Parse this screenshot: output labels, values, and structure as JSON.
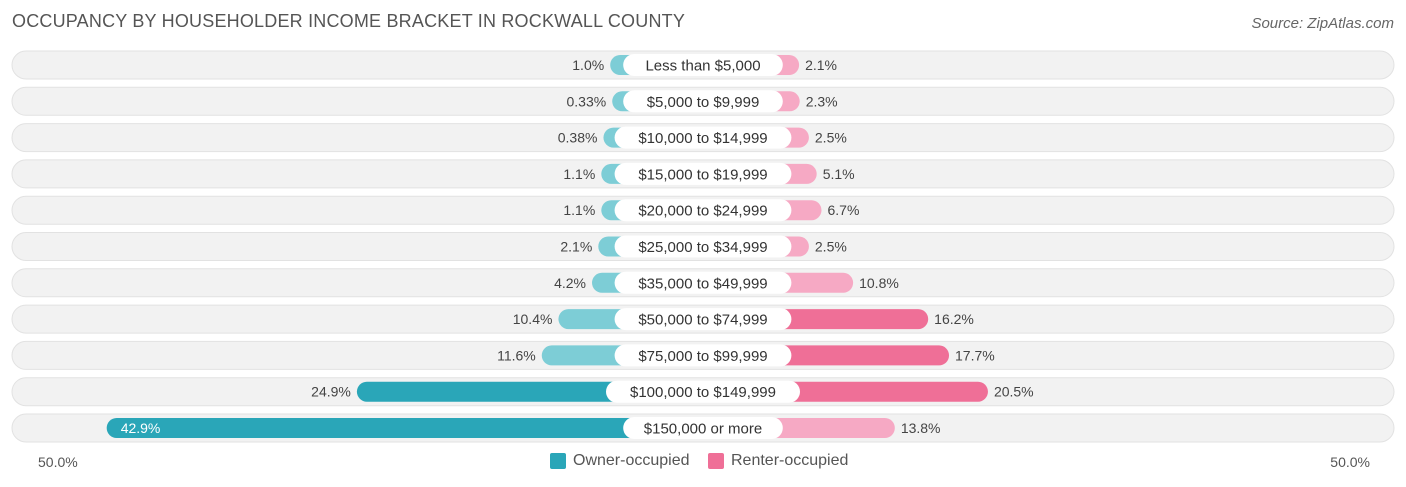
{
  "title": "OCCUPANCY BY HOUSEHOLDER INCOME BRACKET IN ROCKWALL COUNTY",
  "source": "Source: ZipAtlas.com",
  "axis": {
    "left_label": "50.0%",
    "right_label": "50.0%"
  },
  "colors": {
    "owner_light": "#7dcdd6",
    "owner_dark": "#2aa6b8",
    "renter_light": "#f6a9c4",
    "renter_dark": "#ef6f97",
    "row_bg": "#f2f2f2",
    "row_border": "#e2e2e2"
  },
  "legend": {
    "owner": "Owner-occupied",
    "renter": "Renter-occupied"
  },
  "chart_data": {
    "type": "bar",
    "orientation": "horizontal-diverging",
    "title": "OCCUPANCY BY HOUSEHOLDER INCOME BRACKET IN ROCKWALL COUNTY",
    "xlim": [
      -50,
      50
    ],
    "categories": [
      "Less than $5,000",
      "$5,000 to $9,999",
      "$10,000 to $14,999",
      "$15,000 to $19,999",
      "$20,000 to $24,999",
      "$25,000 to $34,999",
      "$35,000 to $49,999",
      "$50,000 to $74,999",
      "$75,000 to $99,999",
      "$100,000 to $149,999",
      "$150,000 or more"
    ],
    "series": [
      {
        "name": "Owner-occupied",
        "values": [
          1.0,
          0.33,
          0.38,
          1.1,
          1.1,
          2.1,
          4.2,
          10.4,
          11.6,
          24.9,
          42.9
        ],
        "labels": [
          "1.0%",
          "0.33%",
          "0.38%",
          "1.1%",
          "1.1%",
          "2.1%",
          "4.2%",
          "10.4%",
          "11.6%",
          "24.9%",
          "42.9%"
        ]
      },
      {
        "name": "Renter-occupied",
        "values": [
          2.1,
          2.3,
          2.5,
          5.1,
          6.7,
          2.5,
          10.8,
          16.2,
          17.7,
          20.5,
          13.8
        ],
        "labels": [
          "2.1%",
          "2.3%",
          "2.5%",
          "5.1%",
          "6.7%",
          "2.5%",
          "10.8%",
          "16.2%",
          "17.7%",
          "20.5%",
          "13.8%"
        ]
      }
    ],
    "legend_position": "bottom-center"
  }
}
